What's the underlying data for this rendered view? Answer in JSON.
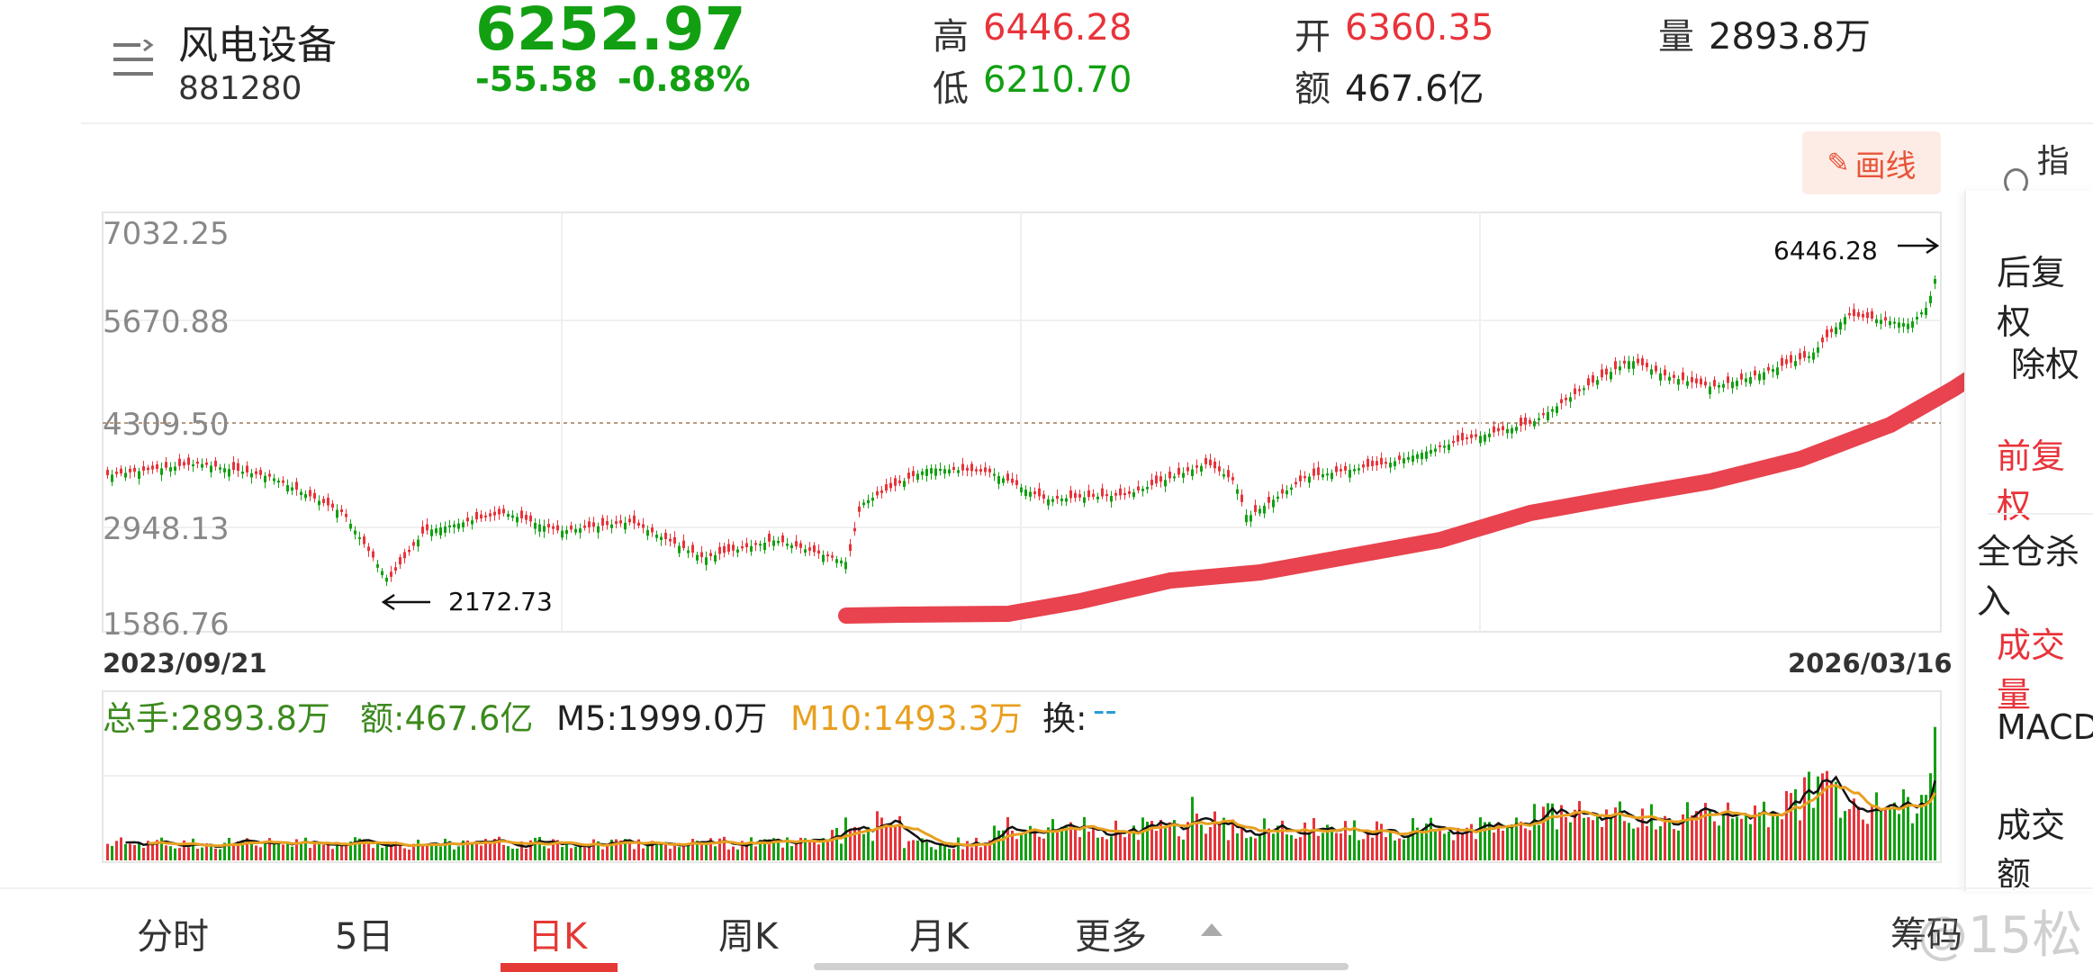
{
  "header": {
    "title": "风电设备",
    "code": "881280",
    "price": "6252.97",
    "change": "-55.58",
    "change_pct": "-0.88%",
    "high_label": "高",
    "high_value": "6446.28",
    "low_label": "低",
    "low_value": "6210.70",
    "open_label": "开",
    "open_value": "6360.35",
    "amount_label": "额",
    "amount_value": "467.6亿",
    "volume_label": "量",
    "volume_value": "2893.8万"
  },
  "toolbar": {
    "draw_button": "画线",
    "indicator": "指标"
  },
  "chart": {
    "y_axis": [
      "7032.25",
      "5670.88",
      "4309.50",
      "2948.13",
      "1586.76"
    ],
    "max_annotation": "6446.28",
    "min_annotation": "2172.73",
    "start_date": "2023/09/21",
    "end_date": "2026/03/16"
  },
  "volume_info": {
    "total": "总手:2893.8万",
    "amount": "额:467.6亿",
    "m5": "M5:1999.0万",
    "m10": "M10:1493.3万",
    "turnover_label": "换:",
    "turnover_value": "--"
  },
  "side_menu": [
    "后复权",
    "除权",
    "前复权",
    "全仓杀入",
    "成交量",
    "MACD",
    "成交额"
  ],
  "tabs": [
    "分时",
    "5日",
    "日K",
    "周K",
    "月K",
    "更多"
  ],
  "bottom_right": {
    "chips": "筹码",
    "watermark": "@15松"
  },
  "colors": {
    "up": "#e8333a",
    "down": "#12a012",
    "accent": "#e53935",
    "ma5": "#111111",
    "ma10": "#e8a020",
    "turnover": "#2a9ad6"
  }
}
